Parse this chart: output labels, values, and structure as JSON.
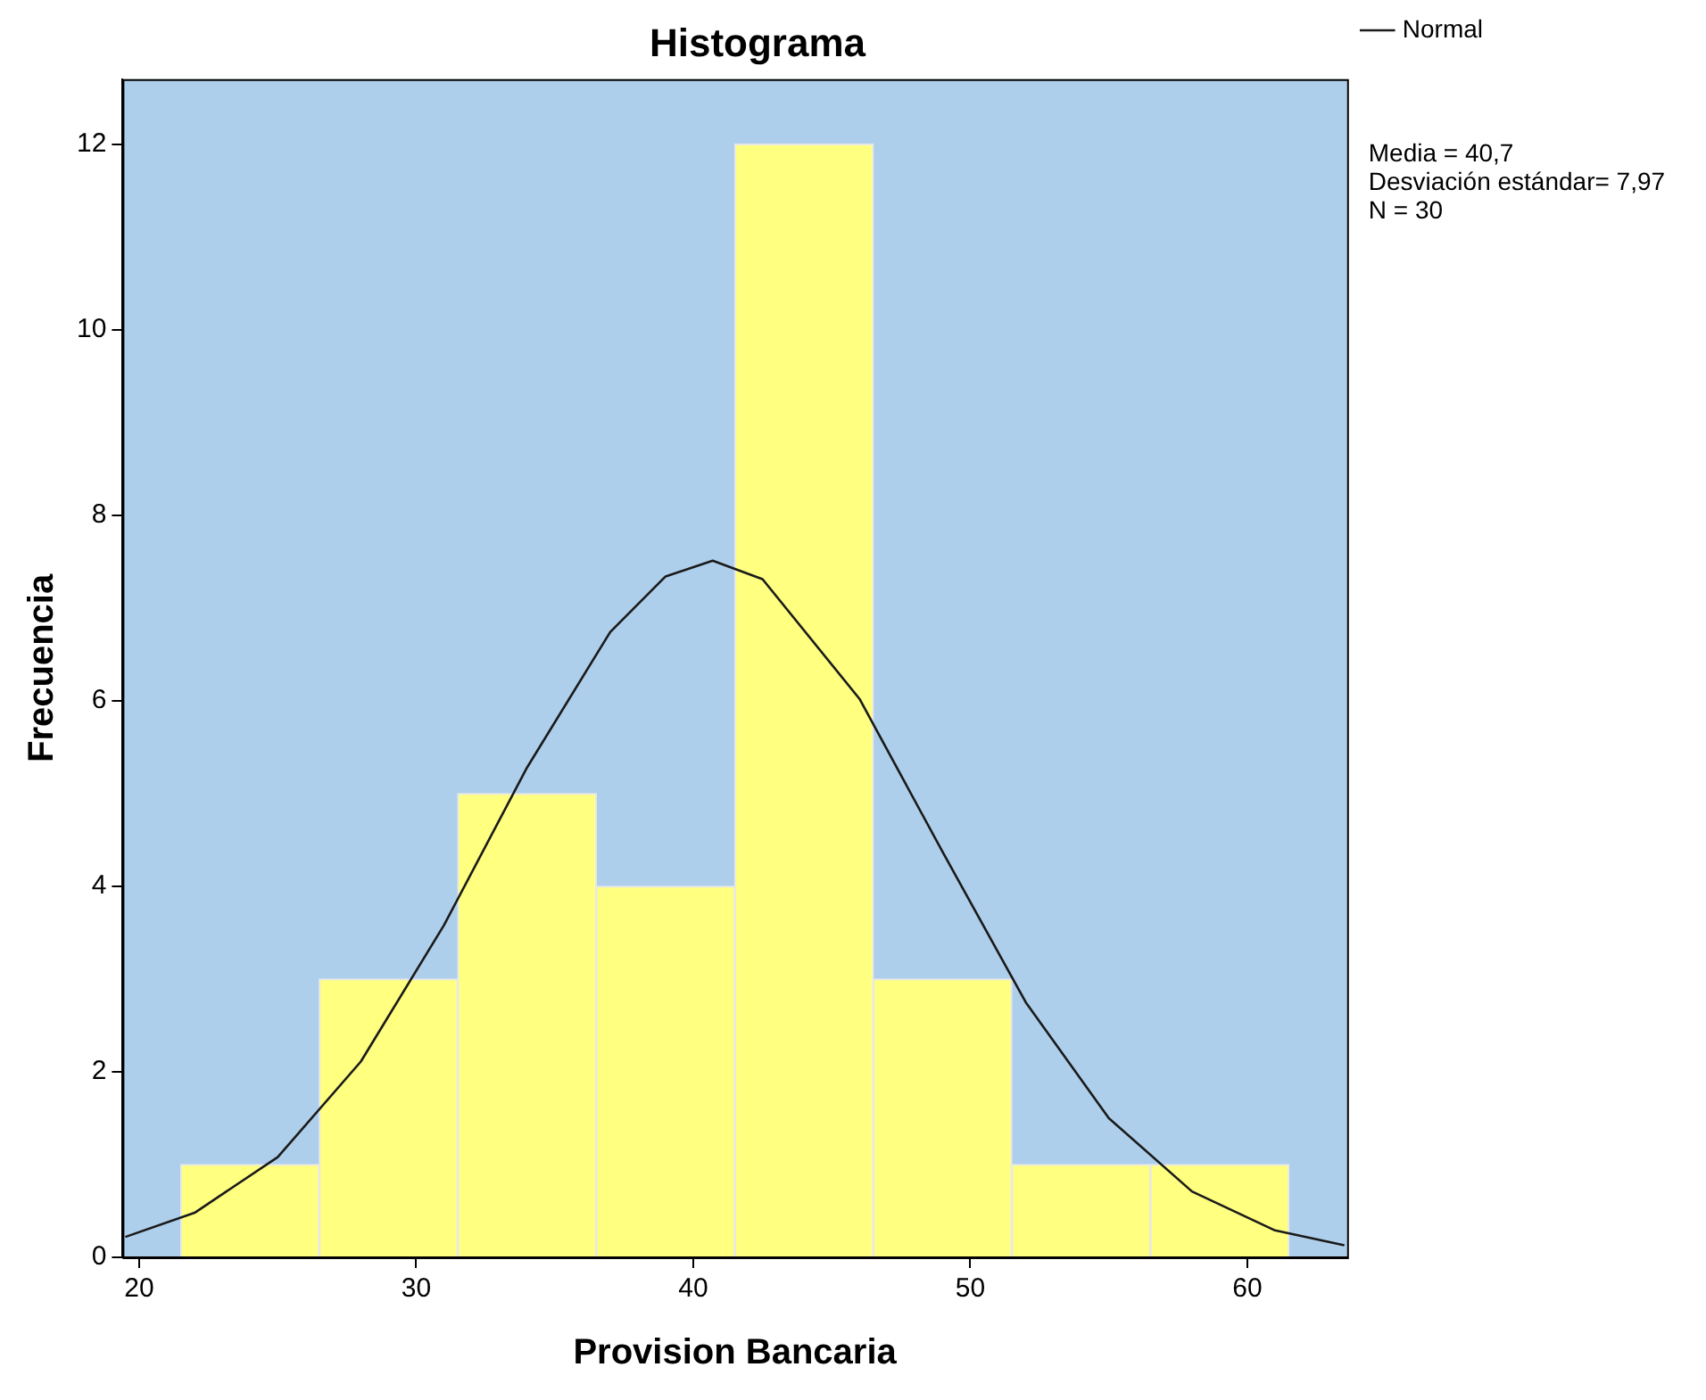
{
  "chart_data": {
    "type": "histogram",
    "title": "Histograma",
    "xlabel": "Provision Bancaria",
    "ylabel": "Frecuencia",
    "bins": [
      21.5,
      26.5,
      31.5,
      36.5,
      41.5,
      46.5,
      51.5,
      56.5,
      61.5
    ],
    "values": [
      1,
      3,
      5,
      4,
      12,
      3,
      1,
      1
    ],
    "color": "#ffff80",
    "series": [
      {
        "name": "Normal",
        "type": "line",
        "color": "#1a1a1a",
        "x": [
          19.5,
          22,
          25,
          28,
          31,
          34,
          37,
          39,
          40.7,
          42.5,
          46,
          49,
          52,
          55,
          58,
          61,
          63.5
        ],
        "values": [
          0.22,
          0.48,
          1.08,
          2.11,
          3.58,
          5.28,
          6.74,
          7.34,
          7.51,
          7.31,
          6.02,
          4.37,
          2.75,
          1.5,
          0.71,
          0.29,
          0.13
        ]
      }
    ],
    "xlim": [
      19.4,
      63.6
    ],
    "xticks": [
      20,
      30,
      40,
      50,
      60
    ],
    "ylim": [
      0,
      12.7
    ],
    "yticks": [
      0,
      2,
      4,
      6,
      8,
      10,
      12
    ],
    "grid": false,
    "legend": "top right",
    "marker": "none",
    "line_style": "solid",
    "annotations": [
      "Media = 40,7",
      "Desviación estándar= 7,97",
      "N = 30"
    ]
  }
}
